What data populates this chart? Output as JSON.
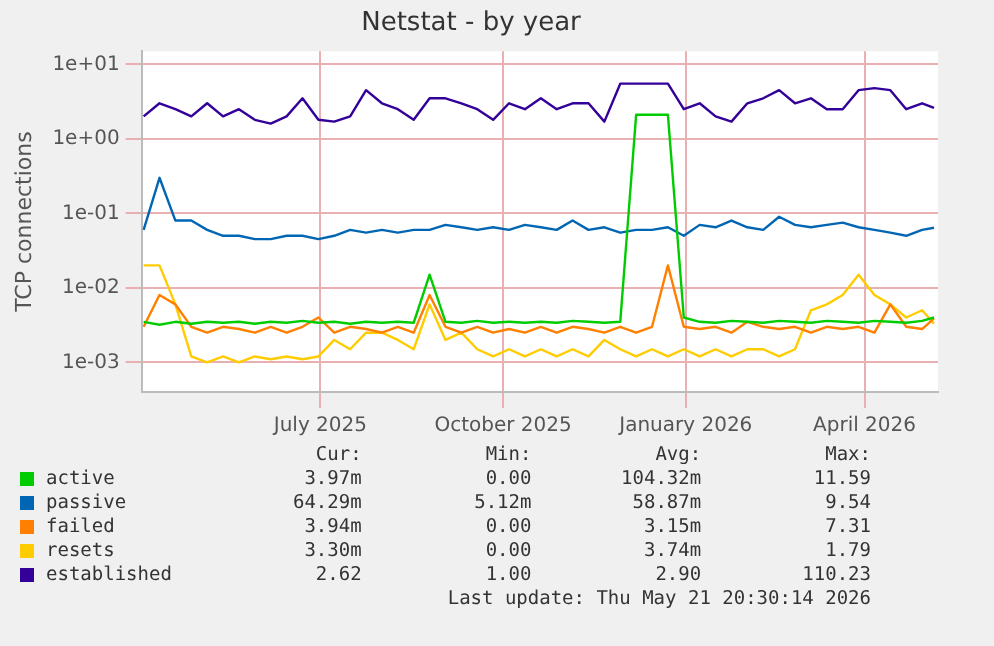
{
  "chart_data": {
    "type": "line",
    "title": "Netstat - by year",
    "ylabel": "TCP connections",
    "x": [
      "2025-04-18",
      "2025-04-26",
      "2025-05-04",
      "2025-05-12",
      "2025-05-20",
      "2025-05-28",
      "2025-06-05",
      "2025-06-13",
      "2025-06-21",
      "2025-06-29",
      "2025-07-07",
      "2025-07-15",
      "2025-07-23",
      "2025-07-31",
      "2025-08-08",
      "2025-08-16",
      "2025-08-24",
      "2025-09-01",
      "2025-09-09",
      "2025-09-17",
      "2025-09-25",
      "2025-10-03",
      "2025-10-11",
      "2025-10-19",
      "2025-10-27",
      "2025-11-04",
      "2025-11-12",
      "2025-11-20",
      "2025-11-28",
      "2025-12-06",
      "2025-12-14",
      "2025-12-22",
      "2025-12-30",
      "2026-01-07",
      "2026-01-15",
      "2026-01-23",
      "2026-01-31",
      "2026-02-08",
      "2026-02-16",
      "2026-02-24",
      "2026-03-04",
      "2026-03-12",
      "2026-03-20",
      "2026-03-28",
      "2026-04-05",
      "2026-04-13",
      "2026-04-21",
      "2026-04-29",
      "2026-05-07",
      "2026-05-15",
      "2026-05-21"
    ],
    "xlim": [
      "2025-04-17",
      "2026-05-23"
    ],
    "xticks": [
      {
        "value": "2025-07-16",
        "label": "July 2025"
      },
      {
        "value": "2025-10-16",
        "label": "October 2025"
      },
      {
        "value": "2026-01-16",
        "label": "January 2026"
      },
      {
        "value": "2026-04-16",
        "label": "April 2026"
      }
    ],
    "log": "y",
    "ylim": [
      0.0004,
      15
    ],
    "yticks": [
      {
        "value": 0.001,
        "label": "1e-03"
      },
      {
        "value": 0.01,
        "label": "1e-02"
      },
      {
        "value": 0.1,
        "label": "1e-01"
      },
      {
        "value": 1,
        "label": "1e+00"
      },
      {
        "value": 10,
        "label": "1e+01"
      }
    ],
    "grid": true,
    "legend": "bottom",
    "marker": "none",
    "line_style": "solid",
    "series": [
      {
        "name": "active",
        "color": "#00cc00",
        "values": [
          0.0035,
          0.0032,
          0.0035,
          0.0033,
          0.0035,
          0.0034,
          0.0035,
          0.0033,
          0.0035,
          0.0034,
          0.0036,
          0.0034,
          0.0035,
          0.0033,
          0.0035,
          0.0034,
          0.0035,
          0.0034,
          0.015,
          0.0035,
          0.0034,
          0.0036,
          0.0034,
          0.0035,
          0.0034,
          0.0035,
          0.0034,
          0.0036,
          0.0035,
          0.0034,
          0.0035,
          2.1,
          2.1,
          2.1,
          0.004,
          0.0035,
          0.0034,
          0.0036,
          0.0035,
          0.0034,
          0.0036,
          0.0035,
          0.0034,
          0.0036,
          0.0035,
          0.0034,
          0.0036,
          0.0035,
          0.0034,
          0.0036,
          0.004
        ]
      },
      {
        "name": "passive",
        "color": "#0066b3",
        "values": [
          0.06,
          0.3,
          0.08,
          0.08,
          0.06,
          0.05,
          0.05,
          0.045,
          0.045,
          0.05,
          0.05,
          0.045,
          0.05,
          0.06,
          0.055,
          0.06,
          0.055,
          0.06,
          0.06,
          0.07,
          0.065,
          0.06,
          0.065,
          0.06,
          0.07,
          0.065,
          0.06,
          0.08,
          0.06,
          0.065,
          0.055,
          0.06,
          0.06,
          0.065,
          0.05,
          0.07,
          0.065,
          0.08,
          0.065,
          0.06,
          0.09,
          0.07,
          0.065,
          0.07,
          0.075,
          0.065,
          0.06,
          0.055,
          0.05,
          0.06,
          0.064
        ]
      },
      {
        "name": "failed",
        "color": "#ff8000",
        "values": [
          0.003,
          0.008,
          0.006,
          0.003,
          0.0025,
          0.003,
          0.0028,
          0.0025,
          0.003,
          0.0025,
          0.003,
          0.004,
          0.0025,
          0.003,
          0.0028,
          0.0025,
          0.003,
          0.0025,
          0.008,
          0.003,
          0.0025,
          0.003,
          0.0025,
          0.0028,
          0.0025,
          0.003,
          0.0025,
          0.003,
          0.0028,
          0.0025,
          0.003,
          0.0025,
          0.003,
          0.02,
          0.003,
          0.0028,
          0.003,
          0.0025,
          0.0035,
          0.003,
          0.0028,
          0.003,
          0.0025,
          0.003,
          0.0028,
          0.003,
          0.0025,
          0.006,
          0.003,
          0.0028,
          0.0039
        ]
      },
      {
        "name": "resets",
        "color": "#ffcc00",
        "values": [
          0.02,
          0.02,
          0.006,
          0.0012,
          0.001,
          0.0012,
          0.001,
          0.0012,
          0.0011,
          0.0012,
          0.0011,
          0.0012,
          0.002,
          0.0015,
          0.0025,
          0.0025,
          0.002,
          0.0015,
          0.006,
          0.002,
          0.0025,
          0.0015,
          0.0012,
          0.0015,
          0.0012,
          0.0015,
          0.0012,
          0.0015,
          0.0012,
          0.002,
          0.0015,
          0.0012,
          0.0015,
          0.0012,
          0.0015,
          0.0012,
          0.0015,
          0.0012,
          0.0015,
          0.0015,
          0.0012,
          0.0015,
          0.005,
          0.006,
          0.008,
          0.015,
          0.008,
          0.006,
          0.004,
          0.005,
          0.0033
        ]
      },
      {
        "name": "established",
        "color": "#330099",
        "values": [
          2,
          3,
          2.5,
          2,
          3,
          2,
          2.5,
          1.8,
          1.6,
          2,
          3.5,
          1.8,
          1.7,
          2,
          4.5,
          3,
          2.5,
          1.8,
          3.5,
          3.5,
          3,
          2.5,
          1.8,
          3,
          2.5,
          3.5,
          2.5,
          3,
          3,
          1.7,
          5.5,
          5.5,
          5.5,
          5.5,
          2.5,
          3,
          2,
          1.7,
          3,
          3.5,
          4.5,
          3,
          3.5,
          2.5,
          2.5,
          4.5,
          4.8,
          4.5,
          2.5,
          3,
          2.6
        ]
      }
    ],
    "annotations": [
      "Cur:",
      "Min:",
      "Avg:",
      "Max:",
      "3.97m",
      "0.00",
      "104.32m",
      "11.59",
      "64.29m",
      "5.12m",
      "58.87m",
      "9.54",
      "3.94m",
      "0.00",
      "3.15m",
      "7.31",
      "3.30m",
      "0.00",
      "3.74m",
      "1.79",
      "2.62",
      "1.00",
      "2.90",
      "110.23",
      "Last update: Thu May 21 20:30:14 2026"
    ]
  }
}
